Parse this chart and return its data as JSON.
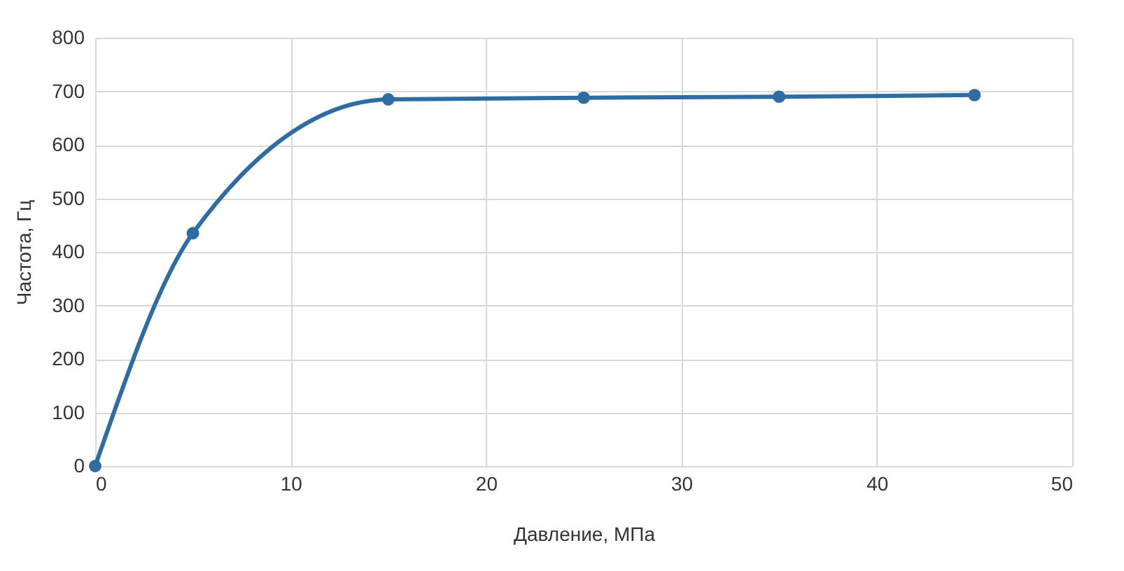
{
  "chart_data": {
    "type": "line",
    "xlabel": "Давление, МПа",
    "ylabel": "Частота, Гц",
    "x": [
      0,
      5,
      15,
      25,
      35,
      45
    ],
    "values": [
      0,
      435,
      685,
      688,
      690,
      693
    ],
    "color": "#2e6da4",
    "xlim": [
      0,
      50
    ],
    "ylim": [
      0,
      800
    ],
    "xticks": [
      0,
      10,
      20,
      30,
      40,
      50
    ],
    "yticks": [
      0,
      100,
      200,
      300,
      400,
      500,
      600,
      700,
      800
    ],
    "grid": true,
    "marker": "circle",
    "line_style": "solid"
  }
}
